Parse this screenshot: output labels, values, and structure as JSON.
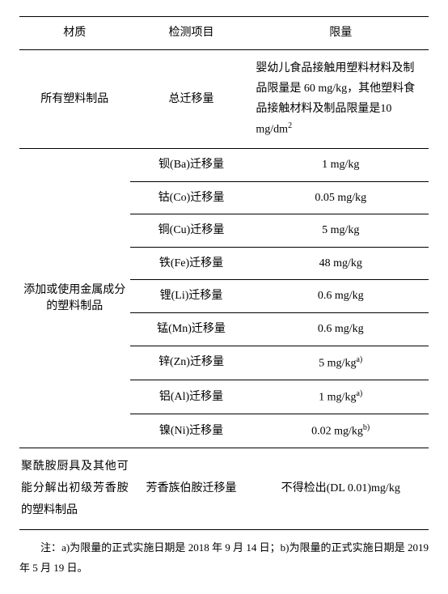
{
  "headers": {
    "material": "材质",
    "test_item": "检测项目",
    "limit": "限量"
  },
  "sections": [
    {
      "material": "所有塑料制品",
      "rows": [
        {
          "item": "总迁移量",
          "limit_html": true,
          "limit_parts": {
            "a": "婴幼儿食品接触用塑料材料及制品限量是 60 mg/kg，其他塑料食品接触材料及制品限量是10 mg/dm",
            "sup": "2"
          }
        }
      ]
    },
    {
      "material": "添加或使用金属成分的塑料制品",
      "rows": [
        {
          "item": "钡(Ba)迁移量",
          "limit": "1 mg/kg"
        },
        {
          "item": "钴(Co)迁移量",
          "limit": "0.05 mg/kg"
        },
        {
          "item": "铜(Cu)迁移量",
          "limit": "5 mg/kg"
        },
        {
          "item": "铁(Fe)迁移量",
          "limit": "48 mg/kg"
        },
        {
          "item": "锂(Li)迁移量",
          "limit": "0.6 mg/kg"
        },
        {
          "item": "锰(Mn)迁移量",
          "limit": "0.6 mg/kg"
        },
        {
          "item": "锌(Zn)迁移量",
          "limit": "5 mg/kg",
          "sup": "a)"
        },
        {
          "item": "铝(Al)迁移量",
          "limit": "1 mg/kg",
          "sup": "a)"
        },
        {
          "item": "镍(Ni)迁移量",
          "limit": "0.02 mg/kg",
          "sup": "b)"
        }
      ]
    },
    {
      "material": "聚酰胺厨具及其他可能分解出初级芳香胺的塑料制品",
      "rows": [
        {
          "item": "芳香族伯胺迁移量",
          "limit": "不得检出(DL 0.01)mg/kg"
        }
      ]
    }
  ],
  "note": "注：a)为限量的正式实施日期是 2018 年 9 月 14 日；b)为限量的正式实施日期是 2019 年 5 月 19 日。"
}
